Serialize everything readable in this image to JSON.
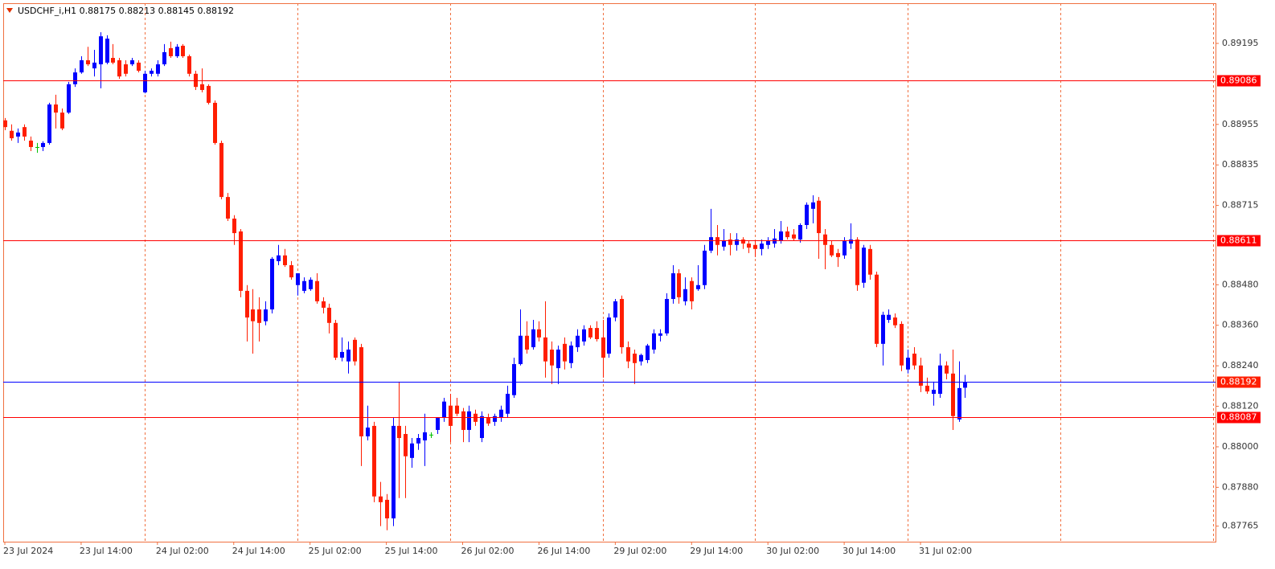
{
  "chart_data": {
    "type": "candlestick",
    "title": "USDCHF_i,H1  0.88175 0.88213 0.88145 0.88192",
    "up_color": "#0000ff",
    "down_color": "#ff1e00",
    "doji_color": "#00c000",
    "ylim": [
      0.87719,
      0.89314
    ],
    "yticks": [
      0.89195,
      0.88955,
      0.88835,
      0.88715,
      {
        "value": 0.8848,
        "label": "0.88480"
      },
      {
        "value": 0.8836,
        "label": "0.88360"
      },
      {
        "value": 0.8824,
        "label": "0.88240"
      },
      {
        "value": 0.8812,
        "label": "0.88120"
      },
      {
        "value": 0.88,
        "label": "0.88000"
      },
      {
        "value": 0.8788,
        "label": "0.87880"
      },
      0.87765
    ],
    "levels": [
      {
        "value": 0.89086,
        "color": "#ff0000",
        "tag_color": "#ff0000"
      },
      {
        "value": 0.88611,
        "color": "#ff0000",
        "tag_color": "#ff0000"
      },
      {
        "value": 0.88192,
        "color": "#0000ff",
        "tag_color": "#ff1e00"
      },
      {
        "value": 0.88087,
        "color": "#ff0000",
        "tag_color": "#ff0000"
      }
    ],
    "categories": [
      "23 Jul 2024",
      null,
      null,
      null,
      null,
      null,
      null,
      null,
      null,
      null,
      null,
      null,
      "23 Jul 14:00",
      null,
      null,
      null,
      null,
      null,
      null,
      null,
      null,
      null,
      null,
      null,
      "24 Jul 02:00",
      null,
      null,
      null,
      null,
      null,
      null,
      null,
      null,
      null,
      null,
      null,
      "24 Jul 14:00",
      null,
      null,
      null,
      null,
      null,
      null,
      null,
      null,
      null,
      null,
      null,
      "25 Jul 02:00",
      null,
      null,
      null,
      null,
      null,
      null,
      null,
      null,
      null,
      null,
      null,
      "25 Jul 14:00",
      null,
      null,
      null,
      null,
      null,
      null,
      null,
      null,
      null,
      null,
      null,
      "26 Jul 02:00",
      null,
      null,
      null,
      null,
      null,
      null,
      null,
      null,
      null,
      null,
      null,
      "26 Jul 14:00",
      null,
      null,
      null,
      null,
      null,
      null,
      null,
      null,
      null,
      null,
      null,
      "29 Jul 02:00",
      null,
      null,
      null,
      null,
      null,
      null,
      null,
      null,
      null,
      null,
      null,
      "29 Jul 14:00",
      null,
      null,
      null,
      null,
      null,
      null,
      null,
      null,
      null,
      null,
      null,
      "30 Jul 02:00",
      null,
      null,
      null,
      null,
      null,
      null,
      null,
      null,
      null,
      null,
      null,
      "30 Jul 14:00",
      null,
      null,
      null,
      null,
      null,
      null,
      null,
      null,
      null,
      null,
      null,
      "31 Jul 02:00",
      null,
      null,
      null,
      null,
      null,
      null,
      null
    ],
    "ohlc": [
      [
        0.88967,
        0.88974,
        0.88938,
        0.88947
      ],
      [
        0.88936,
        0.88955,
        0.88907,
        0.88914
      ],
      [
        0.88919,
        0.88943,
        0.889,
        0.88931
      ],
      [
        0.88947,
        0.88955,
        0.88907,
        0.88919
      ],
      [
        0.88907,
        0.88919,
        0.88876,
        0.88888
      ],
      [
        0.88888,
        0.889,
        0.88871,
        0.88888
      ],
      [
        0.88888,
        0.88905,
        0.88876,
        0.889
      ],
      [
        0.889,
        0.89019,
        0.88895,
        0.89014
      ],
      [
        0.89014,
        0.89043,
        0.88943,
        0.8899
      ],
      [
        0.8899,
        0.89002,
        0.88938,
        0.88943
      ],
      [
        0.8899,
        0.89081,
        0.88986,
        0.89074
      ],
      [
        0.89074,
        0.89121,
        0.89066,
        0.89109
      ],
      [
        0.89109,
        0.89157,
        0.89105,
        0.89145
      ],
      [
        0.89145,
        0.89185,
        0.89128,
        0.89133
      ],
      [
        0.89121,
        0.89176,
        0.89097,
        0.89138
      ],
      [
        0.89133,
        0.89228,
        0.89062,
        0.89216
      ],
      [
        0.89138,
        0.89219,
        0.89133,
        0.89209
      ],
      [
        0.89152,
        0.89193,
        0.89133,
        0.89138
      ],
      [
        0.89145,
        0.89152,
        0.8909,
        0.89097
      ],
      [
        0.89133,
        0.89145,
        0.89097,
        0.89105
      ],
      [
        0.89133,
        0.89152,
        0.89128,
        0.89145
      ],
      [
        0.89138,
        0.89145,
        0.89109,
        0.89114
      ],
      [
        0.8905,
        0.89114,
        0.89047,
        0.89105
      ],
      [
        0.89105,
        0.89121,
        0.89097,
        0.89114
      ],
      [
        0.89105,
        0.89145,
        0.89097,
        0.89133
      ],
      [
        0.89133,
        0.89193,
        0.89128,
        0.89169
      ],
      [
        0.89181,
        0.892,
        0.89152,
        0.89157
      ],
      [
        0.89157,
        0.89193,
        0.89152,
        0.89185
      ],
      [
        0.89188,
        0.89193,
        0.89152,
        0.89157
      ],
      [
        0.89157,
        0.89162,
        0.89097,
        0.89105
      ],
      [
        0.89105,
        0.89114,
        0.89057,
        0.89066
      ],
      [
        0.89074,
        0.89121,
        0.8905,
        0.89057
      ],
      [
        0.89069,
        0.89074,
        0.89014,
        0.89019
      ],
      [
        0.89019,
        0.89026,
        0.88895,
        0.889
      ],
      [
        0.889,
        0.88907,
        0.88733,
        0.8874
      ],
      [
        0.8874,
        0.88752,
        0.88669,
        0.88676
      ],
      [
        0.88676,
        0.88686,
        0.88598,
        0.88633
      ],
      [
        0.88638,
        0.88645,
        0.88443,
        0.88462
      ],
      [
        0.88462,
        0.88479,
        0.88312,
        0.88383
      ],
      [
        0.88407,
        0.88467,
        0.88276,
        0.88372
      ],
      [
        0.88407,
        0.88443,
        0.88312,
        0.88367
      ],
      [
        0.88372,
        0.88431,
        0.8836,
        0.88407
      ],
      [
        0.88407,
        0.88562,
        0.88395,
        0.88557
      ],
      [
        0.8855,
        0.88598,
        0.88538,
        0.88567
      ],
      [
        0.88567,
        0.88586,
        0.88533,
        0.88538
      ],
      [
        0.88538,
        0.8855,
        0.88495,
        0.88502
      ],
      [
        0.88479,
        0.88514,
        0.88448,
        0.88514
      ],
      [
        0.88462,
        0.88502,
        0.88455,
        0.88491
      ],
      [
        0.88467,
        0.88502,
        0.88462,
        0.88495
      ],
      [
        0.88491,
        0.88514,
        0.88424,
        0.88431
      ],
      [
        0.88431,
        0.88443,
        0.88395,
        0.88412
      ],
      [
        0.88412,
        0.88424,
        0.88336,
        0.88367
      ],
      [
        0.88367,
        0.88376,
        0.88257,
        0.88264
      ],
      [
        0.88264,
        0.88324,
        0.88253,
        0.88281
      ],
      [
        0.88253,
        0.88312,
        0.88217,
        0.88288
      ],
      [
        0.88317,
        0.88324,
        0.88241,
        0.88253
      ],
      [
        0.88295,
        0.88305,
        0.87943,
        0.88031
      ],
      [
        0.88031,
        0.88122,
        0.88019,
        0.88057
      ],
      [
        0.88062,
        0.88074,
        0.87836,
        0.87853
      ],
      [
        0.87853,
        0.87896,
        0.87765,
        0.87836
      ],
      [
        0.87843,
        0.8786,
        0.87753,
        0.87788
      ],
      [
        0.87788,
        0.88086,
        0.87765,
        0.88062
      ],
      [
        0.88062,
        0.88193,
        0.87848,
        0.88026
      ],
      [
        0.88038,
        0.88062,
        0.87848,
        0.87972
      ],
      [
        0.87967,
        0.88026,
        0.87938,
        0.8801
      ],
      [
        0.8801,
        0.88038,
        0.87991,
        0.88026
      ],
      [
        0.88019,
        0.88098,
        0.87943,
        0.88043
      ],
      [
        0.88036,
        0.88043,
        0.88026,
        0.88036
      ],
      [
        0.8805,
        0.88074,
        0.88038,
        0.88086
      ],
      [
        0.88086,
        0.88145,
        0.88074,
        0.88134
      ],
      [
        0.88122,
        0.88157,
        0.88014,
        0.88062
      ],
      [
        0.88122,
        0.88145,
        0.88091,
        0.88098
      ],
      [
        0.88105,
        0.88115,
        0.88014,
        0.8805
      ],
      [
        0.8805,
        0.88122,
        0.88014,
        0.88105
      ],
      [
        0.88098,
        0.8811,
        0.88062,
        0.88074
      ],
      [
        0.88026,
        0.88105,
        0.88014,
        0.88091
      ],
      [
        0.88086,
        0.88098,
        0.88062,
        0.88069
      ],
      [
        0.88074,
        0.88098,
        0.88062,
        0.88091
      ],
      [
        0.88086,
        0.88122,
        0.88074,
        0.8811
      ],
      [
        0.88098,
        0.88181,
        0.88086,
        0.88157
      ],
      [
        0.88153,
        0.88264,
        0.88145,
        0.88245
      ],
      [
        0.88245,
        0.88407,
        0.88241,
        0.88329
      ],
      [
        0.88329,
        0.88372,
        0.88276,
        0.88288
      ],
      [
        0.88295,
        0.88376,
        0.88288,
        0.88348
      ],
      [
        0.88348,
        0.88372,
        0.88312,
        0.88324
      ],
      [
        0.88324,
        0.88431,
        0.88205,
        0.88253
      ],
      [
        0.88288,
        0.88312,
        0.88186,
        0.88241
      ],
      [
        0.88233,
        0.883,
        0.88186,
        0.88288
      ],
      [
        0.88305,
        0.88324,
        0.88229,
        0.88253
      ],
      [
        0.88248,
        0.88312,
        0.88233,
        0.883
      ],
      [
        0.88295,
        0.88348,
        0.88281,
        0.88329
      ],
      [
        0.88312,
        0.8836,
        0.883,
        0.88348
      ],
      [
        0.88352,
        0.8836,
        0.88319,
        0.88324
      ],
      [
        0.88352,
        0.88372,
        0.88312,
        0.88319
      ],
      [
        0.88324,
        0.88376,
        0.88205,
        0.88264
      ],
      [
        0.88276,
        0.88395,
        0.88264,
        0.88383
      ],
      [
        0.88383,
        0.88438,
        0.88372,
        0.88431
      ],
      [
        0.88438,
        0.88448,
        0.88276,
        0.88295
      ],
      [
        0.88295,
        0.88312,
        0.88233,
        0.88253
      ],
      [
        0.88276,
        0.88288,
        0.88186,
        0.88248
      ],
      [
        0.88253,
        0.88276,
        0.88241,
        0.88272
      ],
      [
        0.88257,
        0.88305,
        0.88248,
        0.883
      ],
      [
        0.88288,
        0.88348,
        0.88276,
        0.88336
      ],
      [
        0.88329,
        0.88348,
        0.88312,
        0.88336
      ],
      [
        0.88336,
        0.88455,
        0.88329,
        0.88438
      ],
      [
        0.88438,
        0.88538,
        0.88424,
        0.88514
      ],
      [
        0.88514,
        0.88526,
        0.88424,
        0.88443
      ],
      [
        0.88431,
        0.88502,
        0.88419,
        0.88467
      ],
      [
        0.88491,
        0.88502,
        0.88407,
        0.88431
      ],
      [
        0.88467,
        0.88538,
        0.88462,
        0.88479
      ],
      [
        0.88479,
        0.88598,
        0.88467,
        0.88581
      ],
      [
        0.88581,
        0.88705,
        0.88574,
        0.88621
      ],
      [
        0.88621,
        0.88657,
        0.88567,
        0.88598
      ],
      [
        0.88593,
        0.88645,
        0.88581,
        0.8861
      ],
      [
        0.88614,
        0.88633,
        0.88567,
        0.88598
      ],
      [
        0.88598,
        0.88633,
        0.88581,
        0.88614
      ],
      [
        0.88614,
        0.88621,
        0.88586,
        0.88602
      ],
      [
        0.88602,
        0.8861,
        0.88574,
        0.8859
      ],
      [
        0.88598,
        0.8861,
        0.88562,
        0.88586
      ],
      [
        0.88586,
        0.88614,
        0.88567,
        0.88602
      ],
      [
        0.88598,
        0.88621,
        0.88586,
        0.8861
      ],
      [
        0.88602,
        0.88645,
        0.8859,
        0.88617
      ],
      [
        0.8861,
        0.88669,
        0.88602,
        0.88638
      ],
      [
        0.88638,
        0.88652,
        0.88614,
        0.88621
      ],
      [
        0.88629,
        0.88645,
        0.8861,
        0.88617
      ],
      [
        0.88614,
        0.88662,
        0.88605,
        0.88657
      ],
      [
        0.88657,
        0.88724,
        0.88645,
        0.88717
      ],
      [
        0.88705,
        0.88745,
        0.88662,
        0.88724
      ],
      [
        0.88729,
        0.8874,
        0.88557,
        0.88633
      ],
      [
        0.88629,
        0.88645,
        0.88526,
        0.88598
      ],
      [
        0.88598,
        0.8861,
        0.88562,
        0.88567
      ],
      [
        0.88574,
        0.88586,
        0.88533,
        0.88562
      ],
      [
        0.88567,
        0.88621,
        0.88557,
        0.8861
      ],
      [
        0.88602,
        0.88662,
        0.88586,
        0.88614
      ],
      [
        0.88614,
        0.88621,
        0.88462,
        0.88479
      ],
      [
        0.88486,
        0.88598,
        0.88471,
        0.8859
      ],
      [
        0.88586,
        0.88598,
        0.88495,
        0.8851
      ],
      [
        0.8851,
        0.88519,
        0.88295,
        0.88305
      ],
      [
        0.88305,
        0.884,
        0.88241,
        0.88391
      ],
      [
        0.88376,
        0.88407,
        0.88367,
        0.88391
      ],
      [
        0.88383,
        0.88395,
        0.88352,
        0.8836
      ],
      [
        0.88364,
        0.88372,
        0.88224,
        0.88241
      ],
      [
        0.88229,
        0.88288,
        0.88217,
        0.88264
      ],
      [
        0.88276,
        0.88295,
        0.88229,
        0.88241
      ],
      [
        0.88241,
        0.88264,
        0.88162,
        0.88181
      ],
      [
        0.88181,
        0.88205,
        0.88157,
        0.88164
      ],
      [
        0.88157,
        0.88193,
        0.88122,
        0.88169
      ],
      [
        0.88157,
        0.88276,
        0.88145,
        0.88241
      ],
      [
        0.88241,
        0.88253,
        0.882,
        0.88217
      ],
      [
        0.88217,
        0.88288,
        0.8805,
        0.88091
      ],
      [
        0.88081,
        0.88253,
        0.88074,
        0.88174
      ],
      [
        0.88175,
        0.88213,
        0.88145,
        0.88192
      ]
    ]
  }
}
